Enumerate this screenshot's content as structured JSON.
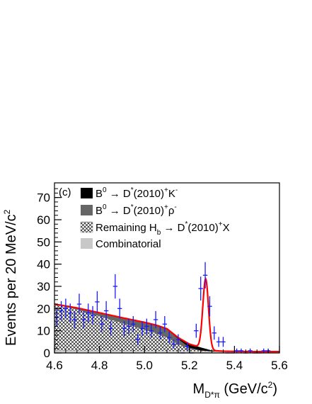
{
  "chart_data": {
    "type": "histogram-fit",
    "panel_label": "(c)",
    "xlabel": {
      "main": "M",
      "sub": "D*π",
      "unit": " (GeV/c",
      "sup": "2",
      "close": ")"
    },
    "ylabel": {
      "main": "Events per 20 MeV/c",
      "sup": "2"
    },
    "xlim": [
      4.6,
      5.6
    ],
    "ylim": [
      0,
      75
    ],
    "x_ticks": [
      4.6,
      4.8,
      5.0,
      5.2,
      5.4,
      5.6
    ],
    "x_tick_labels": [
      "4.6",
      "4.8",
      "5.0",
      "5.2",
      "5.4",
      "5.6"
    ],
    "y_ticks": [
      0,
      10,
      20,
      30,
      40,
      50,
      60,
      70
    ],
    "y_tick_labels": [
      "0",
      "10",
      "20",
      "30",
      "40",
      "50",
      "60",
      "70"
    ],
    "legend": [
      {
        "key": "dk",
        "style": "solid",
        "color": "#000000",
        "parts": [
          [
            "B",
            ""
          ],
          [
            "0",
            "sup"
          ],
          [
            " → D",
            ""
          ],
          [
            "*",
            "sup"
          ],
          [
            "(2010)",
            ""
          ],
          [
            "+",
            "sup"
          ],
          [
            "K",
            ""
          ],
          [
            "-",
            "sup"
          ]
        ]
      },
      {
        "key": "drho",
        "style": "solid",
        "color": "#666666",
        "parts": [
          [
            "B",
            ""
          ],
          [
            "0",
            "sup"
          ],
          [
            " → D",
            ""
          ],
          [
            "*",
            "sup"
          ],
          [
            "(2010)",
            ""
          ],
          [
            "+",
            "sup"
          ],
          [
            "ρ",
            ""
          ],
          [
            "-",
            "sup"
          ]
        ]
      },
      {
        "key": "hb",
        "style": "hatch",
        "color": "#000000",
        "parts": [
          [
            "Remaining H",
            ""
          ],
          [
            "b",
            "sub"
          ],
          [
            " → D",
            ""
          ],
          [
            "*",
            "sup"
          ],
          [
            "(2010)",
            ""
          ],
          [
            "+",
            "sup"
          ],
          [
            "X",
            ""
          ]
        ]
      },
      {
        "key": "comb",
        "style": "solid",
        "color": "#c8c8c8",
        "parts": [
          [
            "Combinatorial",
            ""
          ]
        ]
      }
    ],
    "colors": {
      "data": "#1a1aff",
      "fit": "#ff0000"
    },
    "data_points": {
      "x": [
        4.61,
        4.63,
        4.65,
        4.67,
        4.69,
        4.71,
        4.73,
        4.75,
        4.77,
        4.79,
        4.81,
        4.83,
        4.85,
        4.87,
        4.89,
        4.91,
        4.93,
        4.95,
        4.97,
        4.99,
        5.01,
        5.03,
        5.05,
        5.07,
        5.09,
        5.11,
        5.13,
        5.15,
        5.17,
        5.19,
        5.21,
        5.23,
        5.25,
        5.27,
        5.29,
        5.31,
        5.33,
        5.35,
        5.37,
        5.39,
        5.41,
        5.43,
        5.45,
        5.47,
        5.49,
        5.51,
        5.53,
        5.55
      ],
      "y": [
        16,
        19,
        20,
        18,
        15,
        22,
        15,
        18,
        17,
        23,
        13,
        19,
        11,
        30,
        20,
        11,
        12,
        13,
        6,
        11,
        12,
        10,
        15,
        9,
        13,
        7,
        4,
        6,
        0,
        3,
        0,
        10,
        29,
        35,
        21,
        9,
        5,
        5,
        0,
        0,
        1,
        1,
        0,
        1,
        0,
        0,
        1,
        1
      ]
    },
    "components": {
      "x": [
        4.6,
        4.7,
        4.8,
        4.9,
        5.0,
        5.05,
        5.1,
        5.15,
        5.2,
        5.25,
        5.3,
        5.35,
        5.4,
        5.5,
        5.6
      ],
      "combinatorial": [
        1.2,
        1.1,
        1.0,
        1.0,
        0.9,
        0.9,
        0.9,
        0.8,
        0.8,
        0.8,
        0.7,
        0.7,
        0.7,
        0.6,
        0.6
      ],
      "remaining_hb": [
        20.8,
        18.4,
        15.5,
        12.5,
        9.6,
        8.0,
        6.0,
        3.2,
        1.0,
        0.2,
        0.0,
        0.0,
        0.0,
        0.0,
        0.0
      ],
      "b_to_drho": [
        0.0,
        0.8,
        1.6,
        2.4,
        3.3,
        3.6,
        3.8,
        2.2,
        0.6,
        0.1,
        0.0,
        0.0,
        0.0,
        0.0,
        0.0
      ],
      "b_to_dk": [
        0.0,
        0.0,
        0.0,
        0.0,
        0.0,
        0.1,
        0.2,
        0.7,
        1.6,
        1.4,
        0.4,
        0.1,
        0.0,
        0.0,
        0.0
      ]
    },
    "fit": {
      "background_x": [
        4.6,
        4.7,
        4.8,
        4.9,
        5.0,
        5.05,
        5.1,
        5.15,
        5.2,
        5.25,
        5.3,
        5.35,
        5.4,
        5.5,
        5.6
      ],
      "background_y": [
        22.0,
        20.3,
        18.1,
        15.9,
        13.8,
        12.6,
        10.9,
        6.9,
        4.0,
        2.5,
        1.1,
        0.8,
        0.7,
        0.6,
        0.6
      ],
      "peak_mean": 5.272,
      "peak_sigma": 0.0125,
      "peak_amplitude": 31.5
    }
  }
}
